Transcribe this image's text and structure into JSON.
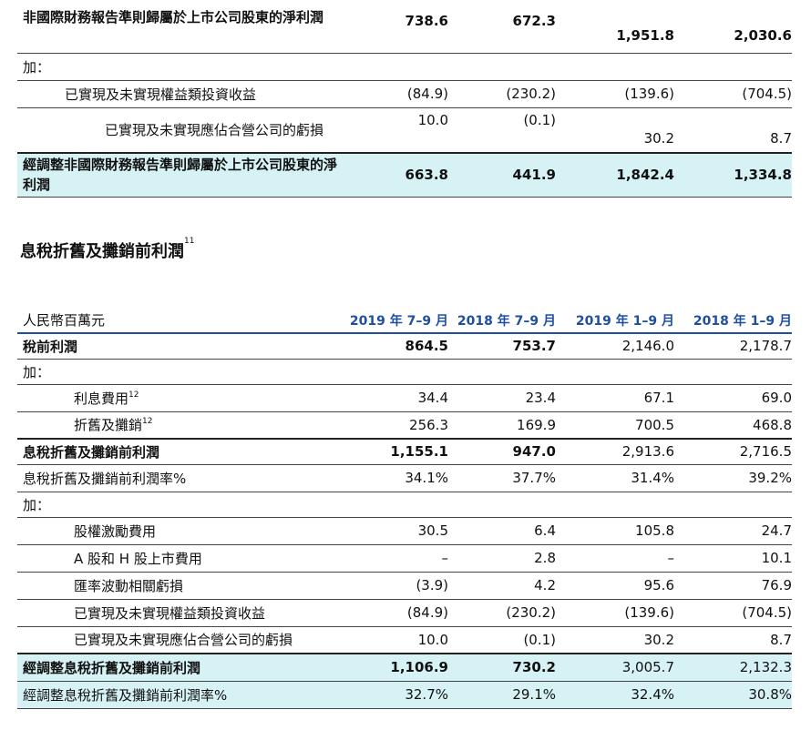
{
  "table1": {
    "rows": [
      {
        "label": "非國際財務報告準則歸屬於上市公司股東的淨利潤",
        "v": [
          "738.6",
          "672.3",
          "1,951.8",
          "2,030.6"
        ]
      },
      {
        "label": "加："
      },
      {
        "label": "已實現及未實現權益類投資收益",
        "v": [
          "(84.9)",
          "(230.2)",
          "(139.6)",
          "(704.5)"
        ]
      },
      {
        "label": "已實現及未實現應佔合營公司的虧損",
        "v": [
          "10.0",
          "(0.1)",
          "30.2",
          "8.7"
        ]
      },
      {
        "label": "經調整非國際財務報告準則歸屬於上市公司股東的淨利潤",
        "v": [
          "663.8",
          "441.9",
          "1,842.4",
          "1,334.8"
        ]
      }
    ]
  },
  "section": {
    "title": "息稅折舊及攤銷前利潤",
    "footnote": "11"
  },
  "table2": {
    "header": {
      "unit": "人民幣百萬元",
      "cols": [
        "2019 年 7–9 月",
        "2018 年 7–9 月",
        "2019 年 1–9 月",
        "2018 年 1–9 月"
      ]
    },
    "rows": [
      {
        "label": "稅前利潤",
        "v": [
          "864.5",
          "753.7",
          "2,146.0",
          "2,178.7"
        ]
      },
      {
        "label": "加："
      },
      {
        "label": "利息費用",
        "fn": "12",
        "v": [
          "34.4",
          "23.4",
          "67.1",
          "69.0"
        ]
      },
      {
        "label": "折舊及攤銷",
        "fn": "12",
        "v": [
          "256.3",
          "169.9",
          "700.5",
          "468.8"
        ]
      },
      {
        "label": "息稅折舊及攤銷前利潤",
        "v": [
          "1,155.1",
          "947.0",
          "2,913.6",
          "2,716.5"
        ]
      },
      {
        "label": "息稅折舊及攤銷前利潤率%",
        "v": [
          "34.1%",
          "37.7%",
          "31.4%",
          "39.2%"
        ]
      },
      {
        "label": "加："
      },
      {
        "label": "股權激勵費用",
        "v": [
          "30.5",
          "6.4",
          "105.8",
          "24.7"
        ]
      },
      {
        "label": "A 股和 H 股上市費用",
        "v": [
          "–",
          "2.8",
          "–",
          "10.1"
        ]
      },
      {
        "label": "匯率波動相關虧損",
        "v": [
          "(3.9)",
          "4.2",
          "95.6",
          "76.9"
        ]
      },
      {
        "label": "已實現及未實現權益類投資收益",
        "v": [
          "(84.9)",
          "(230.2)",
          "(139.6)",
          "(704.5)"
        ]
      },
      {
        "label": "已實現及未實現應佔合營公司的虧損",
        "v": [
          "10.0",
          "(0.1)",
          "30.2",
          "8.7"
        ]
      },
      {
        "label": "經調整息稅折舊及攤銷前利潤",
        "v": [
          "1,106.9",
          "730.2",
          "3,005.7",
          "2,132.3"
        ]
      },
      {
        "label": "經調整息稅折舊及攤銷前利潤率%",
        "v": [
          "32.7%",
          "29.1%",
          "32.4%",
          "30.8%"
        ]
      }
    ]
  }
}
